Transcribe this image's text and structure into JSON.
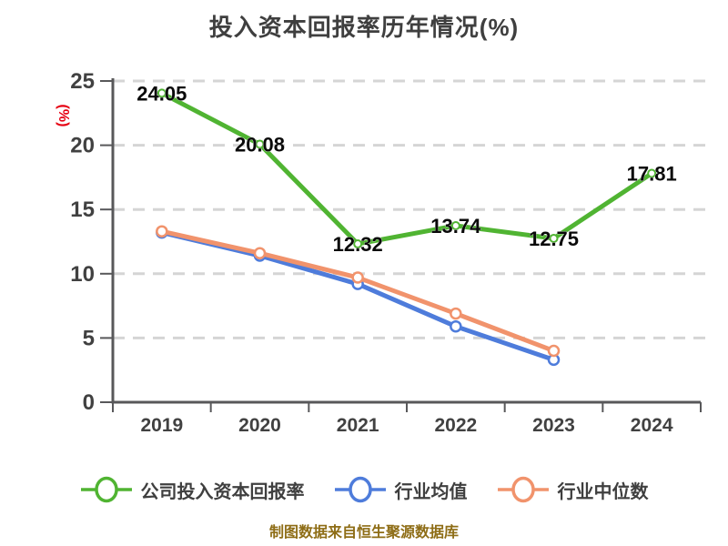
{
  "chart_data": {
    "type": "line",
    "title": "投入资本回报率历年情况(%)",
    "ylabel": "(%)",
    "categories": [
      "2019",
      "2020",
      "2021",
      "2022",
      "2023",
      "2024"
    ],
    "yticks": [
      0,
      5,
      10,
      15,
      20,
      25
    ],
    "ylim": [
      0,
      25
    ],
    "grid": "horizontal-dashed",
    "legend_position": "bottom",
    "series": [
      {
        "name": "公司投入资本回报率",
        "color": "#50B432",
        "values": [
          24.05,
          20.08,
          12.32,
          13.74,
          12.75,
          17.81
        ],
        "data_labels": [
          "24.05",
          "20.08",
          "12.32",
          "13.74",
          "12.75",
          "17.81"
        ]
      },
      {
        "name": "行业均值",
        "color": "#4E7CDB",
        "values": [
          13.2,
          11.4,
          9.2,
          5.9,
          3.3,
          null
        ],
        "data_labels": null
      },
      {
        "name": "行业中位数",
        "color": "#F1936C",
        "values": [
          13.3,
          11.6,
          9.7,
          6.9,
          4.0,
          null
        ],
        "data_labels": null
      }
    ],
    "footer": "制图数据来自恒生聚源数据库"
  },
  "colors": {
    "title_text": "#3F3F3F",
    "axis": "#58585A",
    "tick_label": "#414141",
    "gridline": "#D5D5D5",
    "data_label": "#0A0A0A",
    "legend_text": "#3F3F3F",
    "footer_text": "#8E6D16",
    "ylabel_text": "#E60012",
    "marker_fill": "#FFFFFF"
  }
}
